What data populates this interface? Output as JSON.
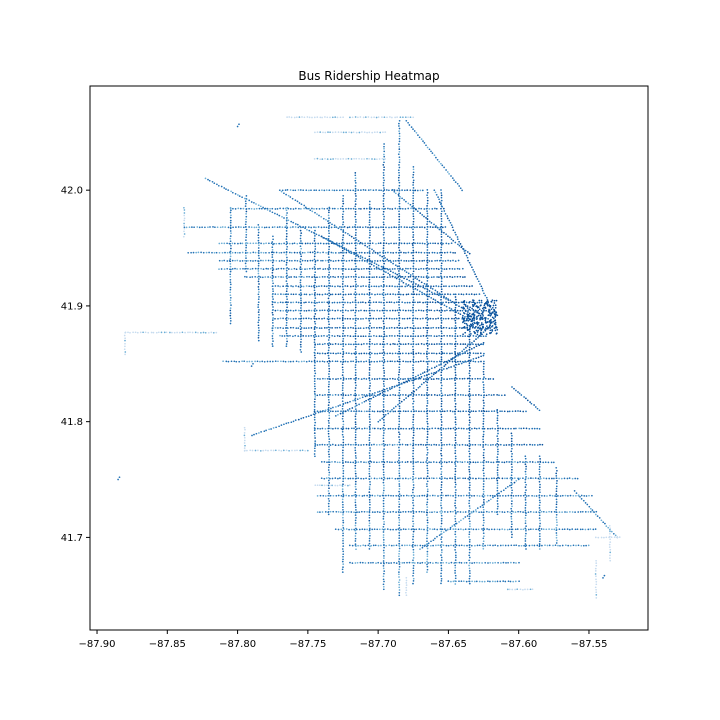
{
  "chart_data": {
    "type": "scatter",
    "title": "Bus Ridership Heatmap",
    "xlabel": "",
    "ylabel": "",
    "xlim": [
      -87.905,
      -87.508
    ],
    "ylim": [
      41.62,
      42.09
    ],
    "xticks": [
      -87.9,
      -87.85,
      -87.8,
      -87.75,
      -87.7,
      -87.65,
      -87.6,
      -87.55
    ],
    "xtick_labels": [
      "−87.90",
      "−87.85",
      "−87.80",
      "−87.75",
      "−87.70",
      "−87.65",
      "−87.60",
      "−87.55"
    ],
    "yticks": [
      41.7,
      41.8,
      41.9,
      42.0
    ],
    "ytick_labels": [
      "41.7",
      "41.8",
      "41.9",
      "42.0"
    ],
    "grid": false,
    "colormap": "Blues",
    "colors": {
      "light": "#c6dbef",
      "mid": "#6baed6",
      "dark": "#2171b5",
      "darkest": "#08519c"
    },
    "series": [
      {
        "routes": {
          "ew": [
            {
              "y": 42.0,
              "x": [
                -87.768,
                -87.668
              ]
            },
            {
              "y": 41.984,
              "x": [
                -87.805,
                -87.658
              ]
            },
            {
              "y": 41.968,
              "x": [
                -87.838,
                -87.652
              ]
            },
            {
              "y": 41.954,
              "x": [
                -87.813,
                -87.648
              ]
            },
            {
              "y": 41.946,
              "x": [
                -87.835,
                -87.645
              ]
            },
            {
              "y": 41.939,
              "x": [
                -87.813,
                -87.643
              ]
            },
            {
              "y": 41.932,
              "x": [
                -87.813,
                -87.64
              ]
            },
            {
              "y": 41.925,
              "x": [
                -87.795,
                -87.638
              ]
            },
            {
              "y": 41.917,
              "x": [
                -87.775,
                -87.633
              ]
            },
            {
              "y": 41.91,
              "x": [
                -87.775,
                -87.628
              ]
            },
            {
              "y": 41.903,
              "x": [
                -87.775,
                -87.626
              ]
            },
            {
              "y": 41.896,
              "x": [
                -87.775,
                -87.623
              ]
            },
            {
              "y": 41.889,
              "x": [
                -87.775,
                -87.622
              ]
            },
            {
              "y": 41.881,
              "x": [
                -87.775,
                -87.62
              ]
            },
            {
              "y": 41.874,
              "x": [
                -87.77,
                -87.623
              ]
            },
            {
              "y": 41.867,
              "x": [
                -87.745,
                -87.625
              ]
            },
            {
              "y": 41.859,
              "x": [
                -87.745,
                -87.625
              ]
            },
            {
              "y": 41.852,
              "x": [
                -87.81,
                -87.625
              ]
            },
            {
              "y": 41.837,
              "x": [
                -87.745,
                -87.618
              ]
            },
            {
              "y": 41.823,
              "x": [
                -87.745,
                -87.61
              ]
            },
            {
              "y": 41.809,
              "x": [
                -87.745,
                -87.595
              ]
            },
            {
              "y": 41.794,
              "x": [
                -87.745,
                -87.585
              ]
            },
            {
              "y": 41.78,
              "x": [
                -87.745,
                -87.583
              ]
            },
            {
              "y": 41.765,
              "x": [
                -87.74,
                -87.575
              ]
            },
            {
              "y": 41.751,
              "x": [
                -87.74,
                -87.558
              ]
            },
            {
              "y": 41.736,
              "x": [
                -87.743,
                -87.548
              ]
            },
            {
              "y": 41.722,
              "x": [
                -87.743,
                -87.545
              ]
            },
            {
              "y": 41.707,
              "x": [
                -87.73,
                -87.545
              ]
            },
            {
              "y": 41.693,
              "x": [
                -87.72,
                -87.55
              ]
            },
            {
              "y": 41.678,
              "x": [
                -87.72,
                -87.6
              ]
            },
            {
              "y": 41.662,
              "x": [
                -87.65,
                -87.6
              ]
            }
          ],
          "ns": [
            {
              "x": -87.805,
              "y": [
                41.885,
                41.985
              ]
            },
            {
              "x": -87.794,
              "y": [
                41.93,
                41.995
              ]
            },
            {
              "x": -87.785,
              "y": [
                41.87,
                41.97
              ]
            },
            {
              "x": -87.775,
              "y": [
                41.865,
                41.96
              ]
            },
            {
              "x": -87.765,
              "y": [
                41.865,
                41.985
              ]
            },
            {
              "x": -87.755,
              "y": [
                41.86,
                41.965
              ]
            },
            {
              "x": -87.745,
              "y": [
                41.77,
                41.965
              ]
            },
            {
              "x": -87.735,
              "y": [
                41.72,
                41.985
              ]
            },
            {
              "x": -87.725,
              "y": [
                41.67,
                41.995
              ]
            },
            {
              "x": -87.716,
              "y": [
                41.69,
                42.015
              ]
            },
            {
              "x": -87.706,
              "y": [
                41.69,
                41.99
              ]
            },
            {
              "x": -87.696,
              "y": [
                41.655,
                42.04
              ]
            },
            {
              "x": -87.685,
              "y": [
                41.65,
                42.06
              ]
            },
            {
              "x": -87.675,
              "y": [
                41.66,
                42.02
              ]
            },
            {
              "x": -87.665,
              "y": [
                41.67,
                42.0
              ]
            },
            {
              "x": -87.655,
              "y": [
                41.66,
                42.0
              ]
            },
            {
              "x": -87.645,
              "y": [
                41.66,
                41.91
              ]
            },
            {
              "x": -87.635,
              "y": [
                41.66,
                41.88
              ]
            },
            {
              "x": -87.625,
              "y": [
                41.69,
                41.85
              ]
            },
            {
              "x": -87.615,
              "y": [
                41.72,
                41.81
              ]
            },
            {
              "x": -87.605,
              "y": [
                41.7,
                41.79
              ]
            },
            {
              "x": -87.595,
              "y": [
                41.69,
                41.77
              ]
            },
            {
              "x": -87.585,
              "y": [
                41.69,
                41.77
              ]
            },
            {
              "x": -87.573,
              "y": [
                41.695,
                41.76
              ]
            }
          ],
          "diagonal": [
            {
              "x": [
                -87.823,
                -87.65
              ],
              "y": [
                42.01,
                41.905
              ]
            },
            {
              "x": [
                -87.77,
                -87.63
              ],
              "y": [
                42.0,
                41.89
              ]
            },
            {
              "x": [
                -87.74,
                -87.63
              ],
              "y": [
                41.96,
                41.885
              ]
            },
            {
              "x": [
                -87.69,
                -87.635
              ],
              "y": [
                42.0,
                41.945
              ]
            },
            {
              "x": [
                -87.68,
                -87.64
              ],
              "y": [
                42.06,
                42.0
              ]
            },
            {
              "x": [
                -87.66,
                -87.622
              ],
              "y": [
                42.0,
                41.905
              ]
            },
            {
              "x": [
                -87.79,
                -87.625
              ],
              "y": [
                41.788,
                41.857
              ]
            },
            {
              "x": [
                -87.7,
                -87.622
              ],
              "y": [
                41.8,
                41.88
              ]
            },
            {
              "x": [
                -87.73,
                -87.625
              ],
              "y": [
                41.805,
                41.868
              ]
            },
            {
              "x": [
                -87.67,
                -87.6
              ],
              "y": [
                41.69,
                41.75
              ]
            },
            {
              "x": [
                -87.56,
                -87.53
              ],
              "y": [
                41.74,
                41.7
              ]
            },
            {
              "x": [
                -87.605,
                -87.585
              ],
              "y": [
                41.83,
                41.81
              ]
            }
          ],
          "segments": [
            {
              "x": [
                -87.88,
                -87.815
              ],
              "y": [
                41.877,
                41.877
              ]
            },
            {
              "x": [
                -87.88,
                -87.88
              ],
              "y": [
                41.858,
                41.877
              ]
            },
            {
              "x": [
                -87.838,
                -87.838
              ],
              "y": [
                41.96,
                41.985
              ]
            },
            {
              "x": [
                -87.795,
                -87.75
              ],
              "y": [
                41.775,
                41.775
              ]
            },
            {
              "x": [
                -87.795,
                -87.795
              ],
              "y": [
                41.775,
                41.795
              ]
            },
            {
              "x": [
                -87.765,
                -87.725
              ],
              "y": [
                42.063,
                42.063
              ]
            },
            {
              "x": [
                -87.72,
                -87.675
              ],
              "y": [
                42.063,
                42.063
              ]
            },
            {
              "x": [
                -87.745,
                -87.695
              ],
              "y": [
                42.05,
                42.05
              ]
            },
            {
              "x": [
                -87.745,
                -87.695
              ],
              "y": [
                42.027,
                42.027
              ]
            },
            {
              "x": [
                -87.545,
                -87.528
              ],
              "y": [
                41.7,
                41.7
              ]
            },
            {
              "x": [
                -87.535,
                -87.535
              ],
              "y": [
                41.68,
                41.71
              ]
            },
            {
              "x": [
                -87.545,
                -87.545
              ],
              "y": [
                41.648,
                41.68
              ]
            },
            {
              "x": [
                -87.608,
                -87.59
              ],
              "y": [
                41.655,
                41.655
              ]
            },
            {
              "x": [
                -87.68,
                -87.68
              ],
              "y": [
                41.65,
                41.665
              ]
            },
            {
              "x": [
                -87.745,
                -87.72
              ],
              "y": [
                41.745,
                41.745
              ]
            }
          ],
          "hotspot": {
            "x": [
              -87.64,
              -87.615
            ],
            "y": [
              41.875,
              41.905
            ]
          },
          "isolated": [
            {
              "x": -87.885,
              "y": 41.75
            },
            {
              "x": -87.8,
              "y": 42.055
            },
            {
              "x": -87.79,
              "y": 41.848
            },
            {
              "x": -87.54,
              "y": 41.665
            }
          ]
        }
      }
    ]
  }
}
